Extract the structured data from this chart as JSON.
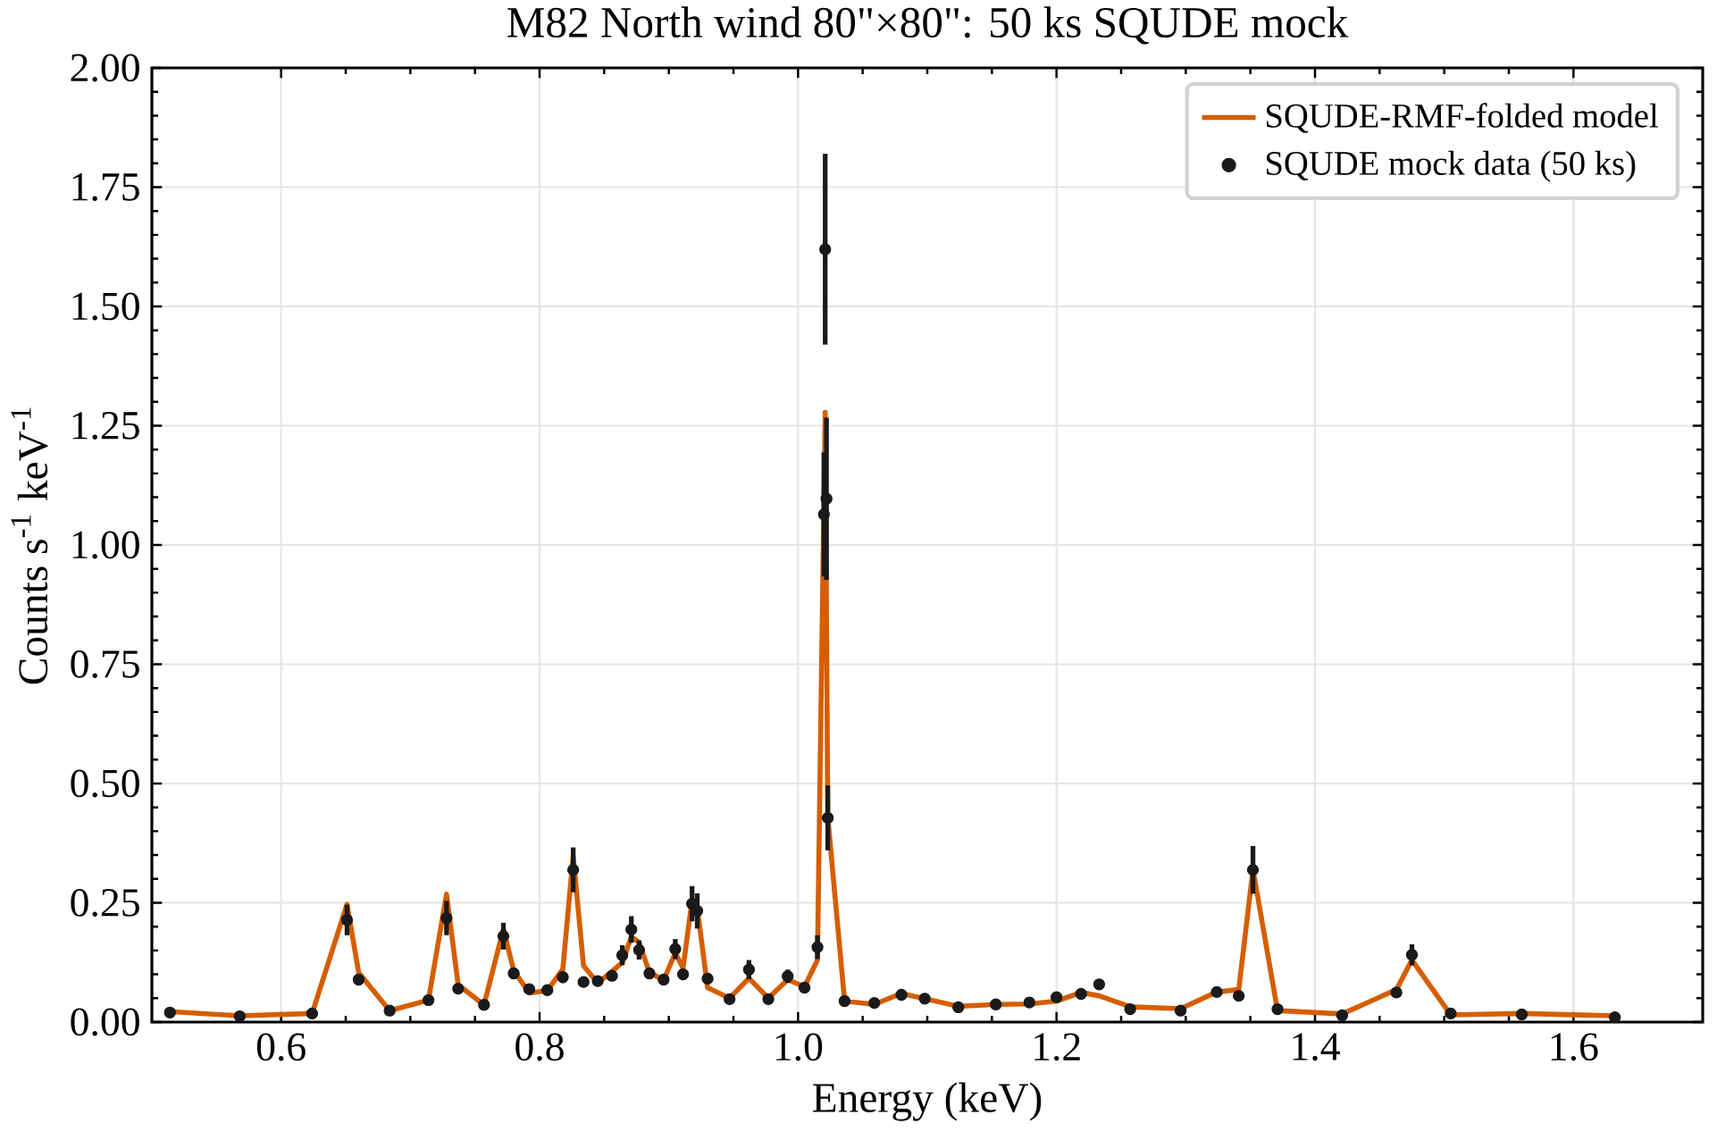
{
  "chart_data": {
    "type": "line",
    "title": "M82 North wind 80\"×80\": 50 ks SQUDE mock",
    "xlabel": "Energy (keV)",
    "ylabel": "Counts s$^{-1}$ keV$^{-1}$",
    "xlim": [
      0.5,
      1.7
    ],
    "xticks": [
      0.6,
      0.8,
      {
        "value": 1.0,
        "label": "1.0"
      },
      1.2,
      1.4,
      1.6
    ],
    "ylim": [
      0,
      2.0
    ],
    "yticks": [
      {
        "value": 0,
        "label": "0.00"
      },
      0.25,
      {
        "value": 0.5,
        "label": "0.50"
      },
      0.75,
      {
        "value": 1.0,
        "label": "1.00"
      },
      1.25,
      {
        "value": 1.5,
        "label": "1.50"
      },
      1.75,
      {
        "value": 2.0,
        "label": "2.00"
      }
    ],
    "grid": true,
    "legend": "top right",
    "series": [
      {
        "name": "SQUDE-RMF-folded model",
        "color": "#d55e00",
        "line_style": "solid",
        "marker": "none",
        "x": [
          0.514,
          0.568,
          0.624,
          0.651,
          0.66,
          0.684,
          0.714,
          0.728,
          0.737,
          0.757,
          0.772,
          0.78,
          0.792,
          0.806,
          0.818,
          0.826,
          0.834,
          0.845,
          0.856,
          0.864,
          0.871,
          0.877,
          0.885,
          0.896,
          0.905,
          0.911,
          0.918,
          0.922,
          0.93,
          0.947,
          0.962,
          0.977,
          0.992,
          1.005,
          1.015,
          1.021,
          1.023,
          1.036,
          1.059,
          1.08,
          1.098,
          1.124,
          1.153,
          1.179,
          1.2,
          1.219,
          1.233,
          1.257,
          1.296,
          1.324,
          1.341,
          1.352,
          1.371,
          1.421,
          1.463,
          1.475,
          1.505,
          1.56,
          1.632
        ],
        "values": [
          0.022,
          0.013,
          0.018,
          0.247,
          0.104,
          0.024,
          0.046,
          0.268,
          0.078,
          0.036,
          0.195,
          0.108,
          0.061,
          0.066,
          0.111,
          0.348,
          0.118,
          0.082,
          0.106,
          0.125,
          0.179,
          0.167,
          0.104,
          0.088,
          0.145,
          0.113,
          0.255,
          0.24,
          0.072,
          0.05,
          0.092,
          0.05,
          0.089,
          0.074,
          0.13,
          1.278,
          0.43,
          0.044,
          0.037,
          0.06,
          0.049,
          0.033,
          0.037,
          0.038,
          0.044,
          0.062,
          0.055,
          0.032,
          0.028,
          0.063,
          0.068,
          0.32,
          0.024,
          0.017,
          0.068,
          0.13,
          0.015,
          0.018,
          0.013
        ]
      },
      {
        "name": "SQUDE mock data (50 ks)",
        "type": "scatter",
        "color": "#1a1a1a",
        "marker": "circle",
        "x": [
          0.514,
          0.568,
          0.624,
          0.651,
          0.66,
          0.684,
          0.714,
          0.728,
          0.737,
          0.757,
          0.772,
          0.78,
          0.792,
          0.806,
          0.818,
          0.826,
          0.834,
          0.845,
          0.856,
          0.864,
          0.871,
          0.877,
          0.885,
          0.896,
          0.905,
          0.911,
          0.918,
          0.922,
          0.93,
          0.947,
          0.962,
          0.977,
          0.992,
          1.005,
          1.015,
          1.02,
          1.021,
          1.022,
          1.023,
          1.036,
          1.059,
          1.08,
          1.098,
          1.124,
          1.153,
          1.179,
          1.2,
          1.219,
          1.233,
          1.257,
          1.296,
          1.324,
          1.341,
          1.352,
          1.371,
          1.421,
          1.463,
          1.475,
          1.505,
          1.56,
          1.632
        ],
        "values": [
          0.02,
          0.012,
          0.018,
          0.214,
          0.089,
          0.024,
          0.046,
          0.218,
          0.07,
          0.036,
          0.18,
          0.102,
          0.069,
          0.067,
          0.094,
          0.319,
          0.084,
          0.086,
          0.097,
          0.14,
          0.194,
          0.151,
          0.102,
          0.089,
          0.153,
          0.1,
          0.248,
          0.233,
          0.091,
          0.048,
          0.11,
          0.048,
          0.096,
          0.072,
          0.157,
          1.064,
          1.62,
          1.097,
          0.428,
          0.044,
          0.04,
          0.057,
          0.049,
          0.031,
          0.037,
          0.041,
          0.052,
          0.059,
          0.079,
          0.027,
          0.024,
          0.063,
          0.055,
          0.319,
          0.027,
          0.014,
          0.062,
          0.141,
          0.018,
          0.016,
          0.01
        ],
        "errors": [
          0.004,
          0.003,
          0.004,
          0.032,
          0.011,
          0.004,
          0.006,
          0.036,
          0.01,
          0.006,
          0.028,
          0.012,
          0.009,
          0.009,
          0.012,
          0.047,
          0.01,
          0.01,
          0.011,
          0.021,
          0.028,
          0.02,
          0.012,
          0.011,
          0.021,
          0.012,
          0.037,
          0.037,
          0.011,
          0.007,
          0.02,
          0.007,
          0.014,
          0.009,
          0.025,
          0.13,
          0.2,
          0.17,
          0.068,
          0.006,
          0.006,
          0.007,
          0.007,
          0.005,
          0.006,
          0.006,
          0.007,
          0.008,
          0.01,
          0.005,
          0.005,
          0.008,
          0.007,
          0.05,
          0.005,
          0.004,
          0.008,
          0.022,
          0.004,
          0.004,
          0.003
        ]
      }
    ]
  }
}
